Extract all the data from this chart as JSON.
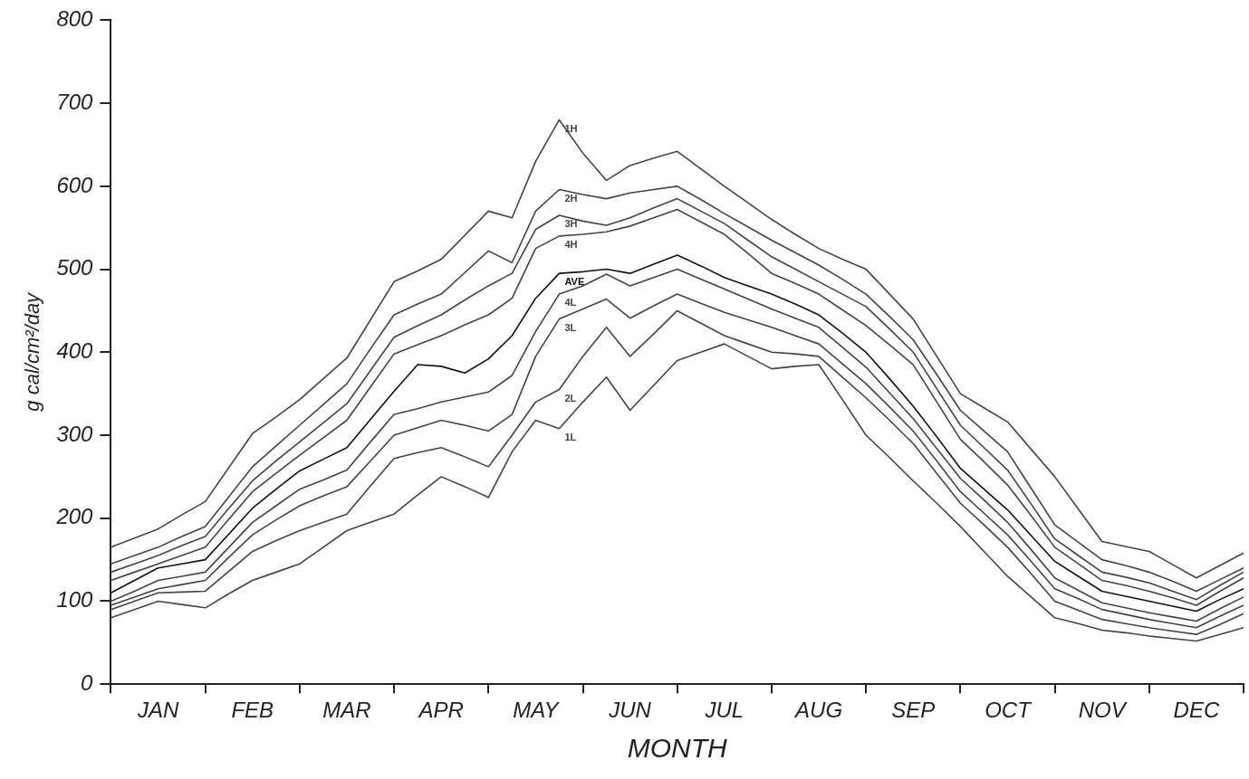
{
  "chart_data": {
    "type": "line",
    "xlabel": "MONTH",
    "ylabel": "g cal/cm²/day",
    "categories": [
      null,
      null,
      "JAN",
      null,
      null,
      null,
      "FEB",
      null,
      null,
      null,
      "MAR",
      null,
      null,
      null,
      "APR",
      null,
      null,
      null,
      "MAY",
      null,
      null,
      null,
      "JUN",
      null,
      null,
      null,
      "JUL",
      null,
      null,
      null,
      "AUG",
      null,
      null,
      null,
      "SEP",
      null,
      null,
      null,
      "OCT",
      null,
      null,
      null,
      "NOV",
      null,
      null,
      null,
      "DEC",
      null,
      null
    ],
    "series": [
      {
        "name": "1H",
        "color": "#444444",
        "values": [
          165,
          176,
          187,
          204,
          220,
          261,
          302,
          322,
          343,
          368,
          393,
          439,
          485,
          498,
          512,
          541,
          570,
          562,
          630,
          680,
          640,
          607,
          625,
          634,
          642,
          621,
          600,
          580,
          560,
          542,
          525,
          512,
          500,
          470,
          440,
          395,
          350,
          333,
          316,
          283,
          250,
          211,
          172,
          166,
          160,
          144,
          128,
          143,
          158
        ]
      },
      {
        "name": "2H",
        "color": "#444444",
        "values": [
          145,
          155,
          165,
          178,
          190,
          226,
          262,
          287,
          312,
          337,
          362,
          404,
          445,
          458,
          470,
          496,
          522,
          508,
          570,
          596,
          590,
          585,
          592,
          596,
          600,
          584,
          567,
          551,
          535,
          520,
          505,
          488,
          470,
          443,
          415,
          373,
          330,
          305,
          280,
          236,
          192,
          171,
          150,
          143,
          135,
          124,
          112,
          126,
          140
        ]
      },
      {
        "name": "3H",
        "color": "#444444",
        "values": [
          135,
          145,
          155,
          167,
          178,
          212,
          245,
          269,
          292,
          315,
          338,
          378,
          418,
          432,
          445,
          463,
          480,
          495,
          548,
          565,
          558,
          553,
          562,
          574,
          585,
          570,
          555,
          535,
          515,
          500,
          485,
          470,
          455,
          428,
          400,
          356,
          312,
          285,
          258,
          217,
          175,
          155,
          135,
          129,
          122,
          112,
          102,
          119,
          135
        ]
      },
      {
        "name": "4H",
        "color": "#444444",
        "values": [
          125,
          135,
          145,
          155,
          165,
          199,
          232,
          254,
          276,
          297,
          318,
          358,
          398,
          409,
          420,
          433,
          445,
          465,
          525,
          540,
          542,
          545,
          552,
          562,
          572,
          557,
          542,
          519,
          495,
          483,
          470,
          451,
          432,
          409,
          385,
          340,
          295,
          268,
          240,
          203,
          165,
          145,
          125,
          119,
          112,
          104,
          95,
          112,
          128
        ]
      },
      {
        "name": "AVE",
        "color": "#111111",
        "values": [
          110,
          125,
          140,
          145,
          150,
          181,
          212,
          235,
          257,
          271,
          285,
          319,
          353,
          385,
          383,
          375,
          392,
          420,
          465,
          495,
          497,
          500,
          495,
          506,
          517,
          504,
          490,
          480,
          470,
          458,
          445,
          423,
          400,
          368,
          335,
          298,
          260,
          235,
          210,
          179,
          148,
          130,
          112,
          106,
          100,
          94,
          88,
          102,
          115
        ]
      },
      {
        "name": "4L",
        "color": "#444444",
        "values": [
          100,
          112,
          125,
          130,
          135,
          165,
          195,
          215,
          235,
          246,
          258,
          292,
          325,
          332,
          340,
          346,
          352,
          372,
          425,
          470,
          480,
          494,
          480,
          490,
          500,
          488,
          476,
          464,
          452,
          441,
          430,
          406,
          382,
          351,
          320,
          284,
          248,
          222,
          195,
          162,
          128,
          113,
          98,
          92,
          86,
          81,
          76,
          91,
          105
        ]
      },
      {
        "name": "3L",
        "color": "#444444",
        "values": [
          95,
          105,
          115,
          120,
          125,
          153,
          180,
          198,
          215,
          227,
          238,
          269,
          300,
          309,
          318,
          312,
          305,
          325,
          395,
          440,
          452,
          464,
          441,
          456,
          470,
          459,
          448,
          439,
          430,
          420,
          410,
          386,
          362,
          334,
          305,
          269,
          232,
          206,
          180,
          148,
          115,
          103,
          90,
          84,
          78,
          73,
          68,
          82,
          95
        ]
      },
      {
        "name": "2L",
        "color": "#444444",
        "values": [
          90,
          100,
          110,
          111,
          112,
          136,
          160,
          173,
          185,
          195,
          205,
          239,
          272,
          279,
          285,
          274,
          262,
          300,
          340,
          355,
          395,
          430,
          395,
          422,
          450,
          435,
          420,
          410,
          400,
          398,
          395,
          370,
          345,
          318,
          290,
          254,
          218,
          192,
          165,
          133,
          100,
          89,
          78,
          73,
          68,
          64,
          60,
          72,
          85
        ]
      },
      {
        "name": "1L",
        "color": "#444444",
        "values": [
          80,
          90,
          100,
          96,
          92,
          109,
          125,
          135,
          145,
          165,
          185,
          195,
          205,
          228,
          250,
          238,
          225,
          280,
          318,
          308,
          340,
          370,
          330,
          360,
          390,
          400,
          410,
          395,
          380,
          383,
          385,
          343,
          300,
          273,
          245,
          218,
          190,
          160,
          130,
          105,
          80,
          73,
          65,
          62,
          58,
          55,
          52,
          60,
          68
        ]
      }
    ],
    "ylim": [
      0,
      800
    ],
    "yticks": [
      0,
      100,
      200,
      300,
      400,
      500,
      600,
      700,
      800
    ],
    "grid": false,
    "legend": false,
    "marker": "none",
    "line_style": "solid"
  }
}
